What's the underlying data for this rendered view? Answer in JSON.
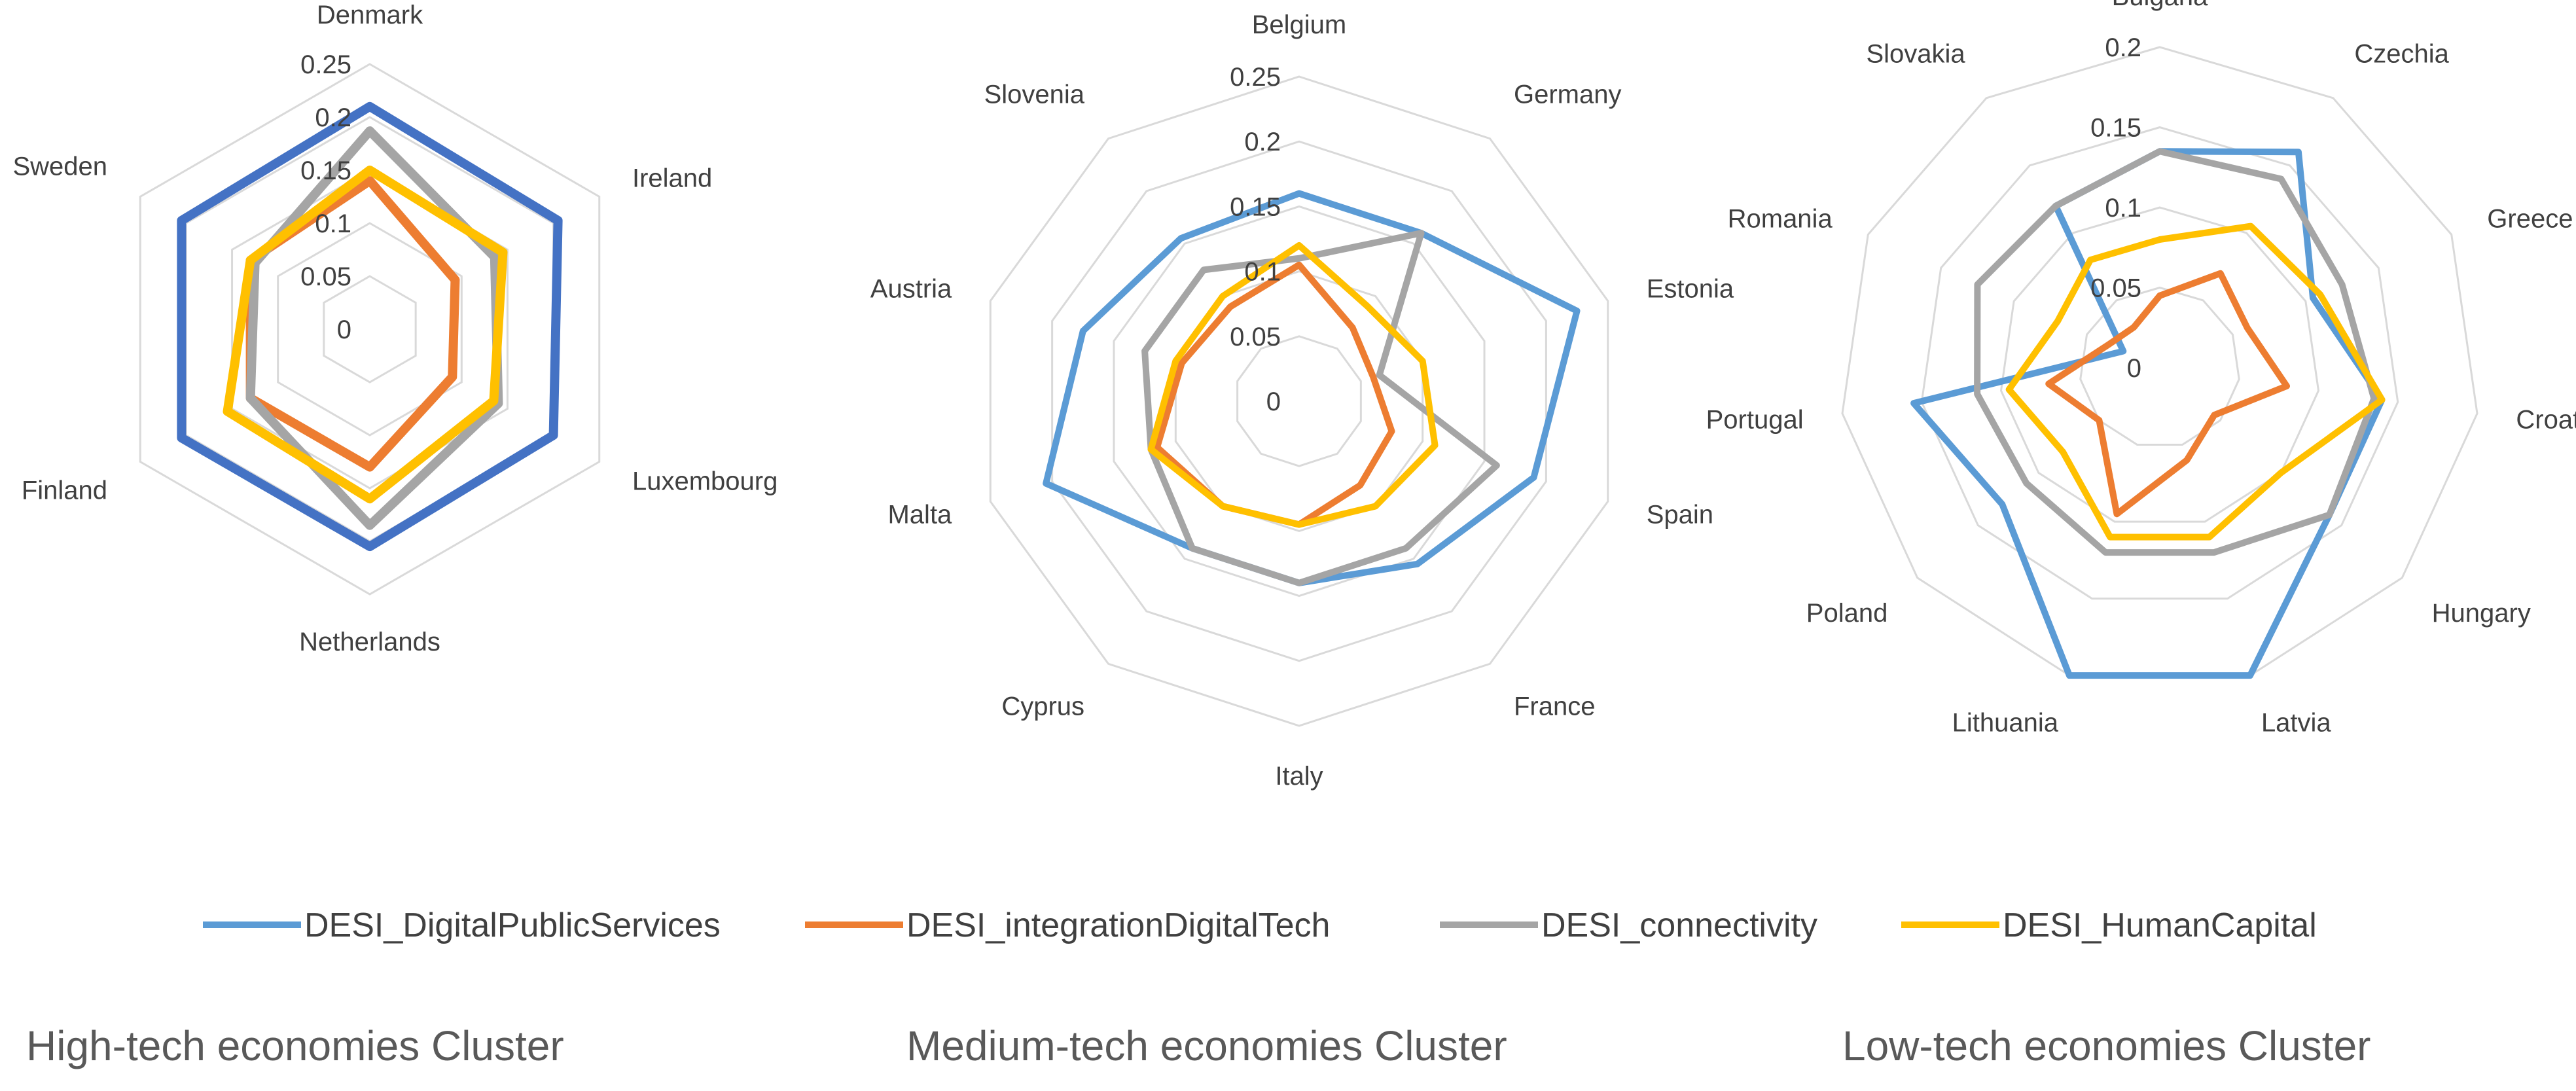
{
  "colors": {
    "DESI_DigitalPublicServices": "#5B9BD5",
    "DESI_DigitalPublicServices_high": "#4472C4",
    "DESI_integrationDigitalTech": "#ED7D31",
    "DESI_connectivity": "#A5A5A5",
    "DESI_HumanCapital": "#FFC000",
    "grid": "#D9D9D9"
  },
  "legend": [
    {
      "key": "DESI_DigitalPublicServices",
      "label": "DESI_DigitalPublicServices"
    },
    {
      "key": "DESI_integrationDigitalTech",
      "label": "DESI_integrationDigitalTech"
    },
    {
      "key": "DESI_connectivity",
      "label": "DESI_connectivity"
    },
    {
      "key": "DESI_HumanCapital",
      "label": "DESI_HumanCapital"
    }
  ],
  "chart_data": [
    {
      "type": "radar",
      "caption": "High-tech economies Cluster",
      "categories": [
        "Denmark",
        "Ireland",
        "Luxembourg",
        "Netherlands",
        "Finland",
        "Sweden"
      ],
      "ticks": [
        "0",
        "0.05",
        "0.1",
        "0.15",
        "0.2",
        "0.25"
      ],
      "rmax": 0.25,
      "series": [
        {
          "key": "DESI_DigitalPublicServices",
          "values": [
            0.21,
            0.205,
            0.2,
            0.205,
            0.205,
            0.205
          ]
        },
        {
          "key": "DESI_integrationDigitalTech",
          "values": [
            0.14,
            0.093,
            0.09,
            0.13,
            0.13,
            0.13
          ]
        },
        {
          "key": "DESI_connectivity",
          "values": [
            0.187,
            0.136,
            0.14,
            0.185,
            0.13,
            0.125
          ]
        },
        {
          "key": "DESI_HumanCapital",
          "values": [
            0.15,
            0.145,
            0.135,
            0.16,
            0.155,
            0.13
          ]
        }
      ]
    },
    {
      "type": "radar",
      "caption": "Medium-tech economies Cluster",
      "categories": [
        "Belgium",
        "Germany",
        "Estonia",
        "Spain",
        "France",
        "Italy",
        "Cyprus",
        "Malta",
        "Austria",
        "Slovenia"
      ],
      "ticks": [
        "0",
        "0.05",
        "0.1",
        "0.15",
        "0.2",
        "0.25"
      ],
      "rmax": 0.25,
      "series": [
        {
          "key": "DESI_DigitalPublicServices",
          "values": [
            0.16,
            0.16,
            0.225,
            0.19,
            0.155,
            0.14,
            0.14,
            0.205,
            0.175,
            0.155
          ]
        },
        {
          "key": "DESI_integrationDigitalTech",
          "values": [
            0.105,
            0.07,
            0.06,
            0.075,
            0.08,
            0.095,
            0.1,
            0.115,
            0.095,
            0.09
          ]
        },
        {
          "key": "DESI_connectivity",
          "values": [
            0.11,
            0.16,
            0.065,
            0.16,
            0.14,
            0.14,
            0.14,
            0.12,
            0.125,
            0.125
          ]
        },
        {
          "key": "DESI_HumanCapital",
          "values": [
            0.12,
            0.09,
            0.1,
            0.11,
            0.1,
            0.095,
            0.1,
            0.12,
            0.1,
            0.1
          ]
        }
      ]
    },
    {
      "type": "radar",
      "caption": "Low-tech economies Cluster",
      "categories": [
        "Bulgaria",
        "Czechia",
        "Greece",
        "Croatia",
        "Hungary",
        "Latvia",
        "Lithuania",
        "Poland",
        "Portugal",
        "Romania",
        "Slovakia"
      ],
      "ticks": [
        "0",
        "0.05",
        "0.1",
        "0.15",
        "0.2"
      ],
      "rmax": 0.2,
      "series": [
        {
          "key": "DESI_DigitalPublicServices",
          "values": [
            0.135,
            0.16,
            0.105,
            0.14,
            0.14,
            0.2,
            0.2,
            0.13,
            0.155,
            0.025,
            0.12
          ]
        },
        {
          "key": "DESI_integrationDigitalTech",
          "values": [
            0.045,
            0.07,
            0.06,
            0.08,
            0.045,
            0.06,
            0.095,
            0.05,
            0.07,
            0.035,
            0.03
          ]
        },
        {
          "key": "DESI_connectivity",
          "values": [
            0.135,
            0.14,
            0.125,
            0.135,
            0.14,
            0.12,
            0.12,
            0.11,
            0.115,
            0.125,
            0.12
          ]
        },
        {
          "key": "DESI_HumanCapital",
          "values": [
            0.08,
            0.105,
            0.11,
            0.14,
            0.1,
            0.11,
            0.11,
            0.08,
            0.095,
            0.07,
            0.08
          ]
        }
      ]
    }
  ]
}
